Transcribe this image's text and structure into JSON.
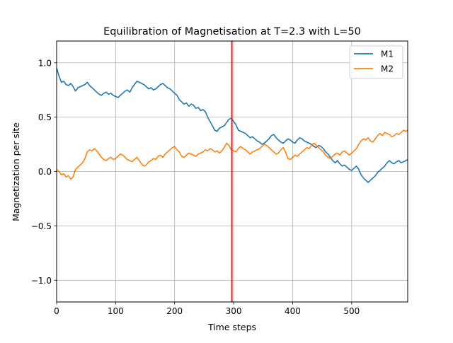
{
  "chart_data": {
    "type": "line",
    "title": "Equilibration of Magnetisation at T=2.3 with L=50",
    "xlabel": "Time steps",
    "ylabel": "Magnetization per site",
    "xlim": [
      0,
      595
    ],
    "ylim": [
      -1.2,
      1.2
    ],
    "grid": true,
    "legend_position": "top-right",
    "x_ticks": [
      0,
      100,
      200,
      300,
      400,
      500
    ],
    "x_tick_labels": [
      "0",
      "100",
      "200",
      "300",
      "400",
      "500"
    ],
    "y_ticks": [
      1.0,
      0.5,
      0.0,
      -0.5,
      -1.0
    ],
    "y_tick_labels": [
      "1.0",
      "0.5",
      "0.0",
      "−0.5",
      "−1.0"
    ],
    "vertical_marker": {
      "x": 297,
      "color": "#d62728"
    },
    "series": [
      {
        "name": "M1",
        "color": "#1f77b4",
        "points": [
          [
            0,
            0.95
          ],
          [
            4,
            0.88
          ],
          [
            8,
            0.82
          ],
          [
            12,
            0.83
          ],
          [
            16,
            0.8
          ],
          [
            20,
            0.79
          ],
          [
            24,
            0.81
          ],
          [
            28,
            0.78
          ],
          [
            32,
            0.74
          ],
          [
            36,
            0.77
          ],
          [
            40,
            0.78
          ],
          [
            44,
            0.79
          ],
          [
            48,
            0.8
          ],
          [
            52,
            0.82
          ],
          [
            56,
            0.79
          ],
          [
            60,
            0.77
          ],
          [
            64,
            0.75
          ],
          [
            68,
            0.73
          ],
          [
            72,
            0.71
          ],
          [
            76,
            0.7
          ],
          [
            80,
            0.72
          ],
          [
            84,
            0.73
          ],
          [
            88,
            0.71
          ],
          [
            92,
            0.72
          ],
          [
            96,
            0.7
          ],
          [
            100,
            0.69
          ],
          [
            104,
            0.68
          ],
          [
            108,
            0.7
          ],
          [
            112,
            0.72
          ],
          [
            116,
            0.74
          ],
          [
            120,
            0.75
          ],
          [
            124,
            0.73
          ],
          [
            128,
            0.77
          ],
          [
            132,
            0.8
          ],
          [
            136,
            0.83
          ],
          [
            140,
            0.82
          ],
          [
            144,
            0.81
          ],
          [
            148,
            0.8
          ],
          [
            152,
            0.78
          ],
          [
            156,
            0.76
          ],
          [
            160,
            0.77
          ],
          [
            164,
            0.75
          ],
          [
            168,
            0.76
          ],
          [
            172,
            0.78
          ],
          [
            176,
            0.8
          ],
          [
            180,
            0.81
          ],
          [
            184,
            0.79
          ],
          [
            188,
            0.77
          ],
          [
            192,
            0.76
          ],
          [
            196,
            0.74
          ],
          [
            200,
            0.72
          ],
          [
            204,
            0.7
          ],
          [
            208,
            0.66
          ],
          [
            212,
            0.64
          ],
          [
            216,
            0.62
          ],
          [
            220,
            0.63
          ],
          [
            224,
            0.6
          ],
          [
            228,
            0.62
          ],
          [
            232,
            0.61
          ],
          [
            236,
            0.58
          ],
          [
            240,
            0.59
          ],
          [
            244,
            0.56
          ],
          [
            248,
            0.57
          ],
          [
            252,
            0.55
          ],
          [
            256,
            0.5
          ],
          [
            260,
            0.46
          ],
          [
            264,
            0.42
          ],
          [
            268,
            0.38
          ],
          [
            272,
            0.37
          ],
          [
            276,
            0.4
          ],
          [
            280,
            0.41
          ],
          [
            284,
            0.42
          ],
          [
            288,
            0.45
          ],
          [
            292,
            0.48
          ],
          [
            296,
            0.49
          ],
          [
            300,
            0.46
          ],
          [
            304,
            0.43
          ],
          [
            308,
            0.38
          ],
          [
            312,
            0.37
          ],
          [
            316,
            0.36
          ],
          [
            320,
            0.35
          ],
          [
            324,
            0.33
          ],
          [
            328,
            0.31
          ],
          [
            332,
            0.32
          ],
          [
            336,
            0.3
          ],
          [
            340,
            0.28
          ],
          [
            344,
            0.27
          ],
          [
            348,
            0.25
          ],
          [
            352,
            0.26
          ],
          [
            356,
            0.28
          ],
          [
            360,
            0.3
          ],
          [
            364,
            0.33
          ],
          [
            368,
            0.34
          ],
          [
            372,
            0.31
          ],
          [
            376,
            0.29
          ],
          [
            380,
            0.27
          ],
          [
            384,
            0.26
          ],
          [
            388,
            0.28
          ],
          [
            392,
            0.3
          ],
          [
            396,
            0.29
          ],
          [
            400,
            0.27
          ],
          [
            404,
            0.26
          ],
          [
            408,
            0.29
          ],
          [
            412,
            0.31
          ],
          [
            416,
            0.3
          ],
          [
            420,
            0.28
          ],
          [
            424,
            0.27
          ],
          [
            428,
            0.26
          ],
          [
            432,
            0.25
          ],
          [
            436,
            0.23
          ],
          [
            440,
            0.22
          ],
          [
            444,
            0.24
          ],
          [
            448,
            0.23
          ],
          [
            452,
            0.21
          ],
          [
            456,
            0.18
          ],
          [
            460,
            0.16
          ],
          [
            464,
            0.13
          ],
          [
            468,
            0.1
          ],
          [
            472,
            0.08
          ],
          [
            476,
            0.1
          ],
          [
            480,
            0.07
          ],
          [
            484,
            0.05
          ],
          [
            488,
            0.06
          ],
          [
            492,
            0.04
          ],
          [
            496,
            0.02
          ],
          [
            500,
            0.01
          ],
          [
            504,
            0.03
          ],
          [
            508,
            0.05
          ],
          [
            512,
            0.02
          ],
          [
            516,
            -0.03
          ],
          [
            520,
            -0.06
          ],
          [
            524,
            -0.08
          ],
          [
            528,
            -0.1
          ],
          [
            532,
            -0.08
          ],
          [
            536,
            -0.06
          ],
          [
            540,
            -0.04
          ],
          [
            544,
            -0.01
          ],
          [
            548,
            0.01
          ],
          [
            552,
            0.03
          ],
          [
            556,
            0.05
          ],
          [
            560,
            0.08
          ],
          [
            564,
            0.1
          ],
          [
            568,
            0.08
          ],
          [
            572,
            0.07
          ],
          [
            576,
            0.09
          ],
          [
            580,
            0.1
          ],
          [
            584,
            0.08
          ],
          [
            588,
            0.09
          ],
          [
            592,
            0.1
          ],
          [
            595,
            0.11
          ]
        ]
      },
      {
        "name": "M2",
        "color": "#ff7f0e",
        "points": [
          [
            0,
            0.02
          ],
          [
            4,
            0.0
          ],
          [
            8,
            -0.03
          ],
          [
            12,
            -0.02
          ],
          [
            16,
            -0.05
          ],
          [
            20,
            -0.04
          ],
          [
            24,
            -0.07
          ],
          [
            28,
            -0.05
          ],
          [
            32,
            0.02
          ],
          [
            36,
            0.04
          ],
          [
            40,
            0.06
          ],
          [
            44,
            0.08
          ],
          [
            48,
            0.12
          ],
          [
            52,
            0.18
          ],
          [
            56,
            0.2
          ],
          [
            60,
            0.19
          ],
          [
            64,
            0.21
          ],
          [
            68,
            0.19
          ],
          [
            72,
            0.16
          ],
          [
            76,
            0.13
          ],
          [
            80,
            0.11
          ],
          [
            84,
            0.1
          ],
          [
            88,
            0.12
          ],
          [
            92,
            0.13
          ],
          [
            96,
            0.11
          ],
          [
            100,
            0.12
          ],
          [
            104,
            0.14
          ],
          [
            108,
            0.16
          ],
          [
            112,
            0.15
          ],
          [
            116,
            0.13
          ],
          [
            120,
            0.11
          ],
          [
            124,
            0.1
          ],
          [
            128,
            0.09
          ],
          [
            132,
            0.11
          ],
          [
            136,
            0.13
          ],
          [
            140,
            0.1
          ],
          [
            144,
            0.07
          ],
          [
            148,
            0.05
          ],
          [
            152,
            0.06
          ],
          [
            156,
            0.09
          ],
          [
            160,
            0.1
          ],
          [
            164,
            0.12
          ],
          [
            168,
            0.11
          ],
          [
            172,
            0.14
          ],
          [
            176,
            0.15
          ],
          [
            180,
            0.13
          ],
          [
            184,
            0.16
          ],
          [
            188,
            0.18
          ],
          [
            192,
            0.2
          ],
          [
            196,
            0.22
          ],
          [
            200,
            0.23
          ],
          [
            204,
            0.2
          ],
          [
            208,
            0.18
          ],
          [
            212,
            0.14
          ],
          [
            216,
            0.13
          ],
          [
            220,
            0.15
          ],
          [
            224,
            0.17
          ],
          [
            228,
            0.16
          ],
          [
            232,
            0.15
          ],
          [
            236,
            0.14
          ],
          [
            240,
            0.16
          ],
          [
            244,
            0.17
          ],
          [
            248,
            0.18
          ],
          [
            252,
            0.2
          ],
          [
            256,
            0.19
          ],
          [
            260,
            0.21
          ],
          [
            264,
            0.2
          ],
          [
            268,
            0.18
          ],
          [
            272,
            0.19
          ],
          [
            276,
            0.17
          ],
          [
            280,
            0.19
          ],
          [
            284,
            0.22
          ],
          [
            288,
            0.26
          ],
          [
            292,
            0.24
          ],
          [
            296,
            0.2
          ],
          [
            300,
            0.19
          ],
          [
            304,
            0.18
          ],
          [
            308,
            0.21
          ],
          [
            312,
            0.23
          ],
          [
            316,
            0.21
          ],
          [
            320,
            0.2
          ],
          [
            324,
            0.18
          ],
          [
            328,
            0.16
          ],
          [
            332,
            0.18
          ],
          [
            336,
            0.19
          ],
          [
            340,
            0.2
          ],
          [
            344,
            0.21
          ],
          [
            348,
            0.23
          ],
          [
            352,
            0.25
          ],
          [
            356,
            0.24
          ],
          [
            360,
            0.22
          ],
          [
            364,
            0.2
          ],
          [
            368,
            0.18
          ],
          [
            372,
            0.16
          ],
          [
            376,
            0.17
          ],
          [
            380,
            0.2
          ],
          [
            384,
            0.22
          ],
          [
            388,
            0.18
          ],
          [
            392,
            0.12
          ],
          [
            396,
            0.11
          ],
          [
            400,
            0.13
          ],
          [
            404,
            0.15
          ],
          [
            408,
            0.14
          ],
          [
            412,
            0.16
          ],
          [
            416,
            0.18
          ],
          [
            420,
            0.2
          ],
          [
            424,
            0.22
          ],
          [
            428,
            0.21
          ],
          [
            432,
            0.24
          ],
          [
            436,
            0.26
          ],
          [
            440,
            0.24
          ],
          [
            444,
            0.22
          ],
          [
            448,
            0.2
          ],
          [
            452,
            0.18
          ],
          [
            456,
            0.15
          ],
          [
            460,
            0.13
          ],
          [
            464,
            0.12
          ],
          [
            468,
            0.14
          ],
          [
            472,
            0.16
          ],
          [
            476,
            0.17
          ],
          [
            480,
            0.15
          ],
          [
            484,
            0.18
          ],
          [
            488,
            0.19
          ],
          [
            492,
            0.17
          ],
          [
            496,
            0.15
          ],
          [
            500,
            0.17
          ],
          [
            504,
            0.19
          ],
          [
            508,
            0.21
          ],
          [
            512,
            0.25
          ],
          [
            516,
            0.28
          ],
          [
            520,
            0.3
          ],
          [
            524,
            0.29
          ],
          [
            528,
            0.31
          ],
          [
            532,
            0.28
          ],
          [
            536,
            0.27
          ],
          [
            540,
            0.3
          ],
          [
            544,
            0.33
          ],
          [
            548,
            0.35
          ],
          [
            552,
            0.33
          ],
          [
            556,
            0.36
          ],
          [
            560,
            0.35
          ],
          [
            564,
            0.34
          ],
          [
            568,
            0.32
          ],
          [
            572,
            0.33
          ],
          [
            576,
            0.35
          ],
          [
            580,
            0.34
          ],
          [
            584,
            0.36
          ],
          [
            588,
            0.38
          ],
          [
            592,
            0.37
          ],
          [
            595,
            0.38
          ]
        ]
      }
    ]
  }
}
